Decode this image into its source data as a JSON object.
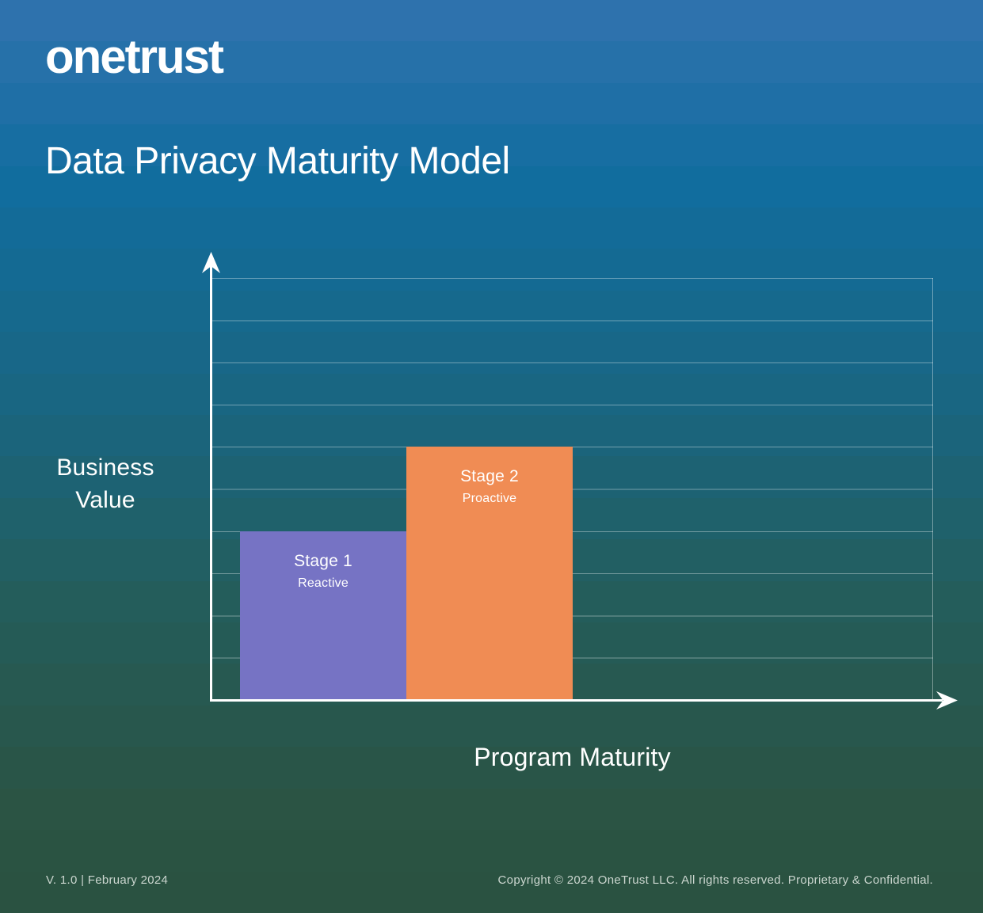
{
  "brand": {
    "logo_text": "onetrust"
  },
  "header": {
    "title": "Data Privacy Maturity Model"
  },
  "chart": {
    "y_axis_label_line1": "Business",
    "y_axis_label_line2": "Value",
    "x_axis_label": "Program Maturity",
    "stages": [
      {
        "name": "Stage 1",
        "descriptor": "Reactive",
        "color": "#7673C4"
      },
      {
        "name": "Stage 2",
        "descriptor": "Proactive",
        "color": "#F08C54"
      }
    ]
  },
  "chart_data": {
    "type": "bar",
    "title": "Data Privacy Maturity Model",
    "categories": [
      "Stage 1",
      "Stage 2"
    ],
    "series": [
      {
        "name": "Business Value",
        "values": [
          4,
          6
        ]
      }
    ],
    "bar_labels": [
      [
        "Stage 1",
        "Reactive"
      ],
      [
        "Stage 2",
        "Proactive"
      ]
    ],
    "bar_colors": [
      "#7673C4",
      "#F08C54"
    ],
    "xlabel": "Program Maturity",
    "ylabel": "Business Value",
    "ylim": [
      0,
      10
    ],
    "grid": true,
    "legend_position": "none",
    "axis_tick_labels": "none",
    "gridline_color": "rgba(255,255,255,0.38)",
    "background_top_color": "#2E72AD",
    "background_bottom_color": "#2A5241"
  },
  "footer": {
    "version": "V. 1.0 | February 2024",
    "copyright": "Copyright © 2024 OneTrust LLC. All rights reserved. Proprietary & Confidential."
  }
}
